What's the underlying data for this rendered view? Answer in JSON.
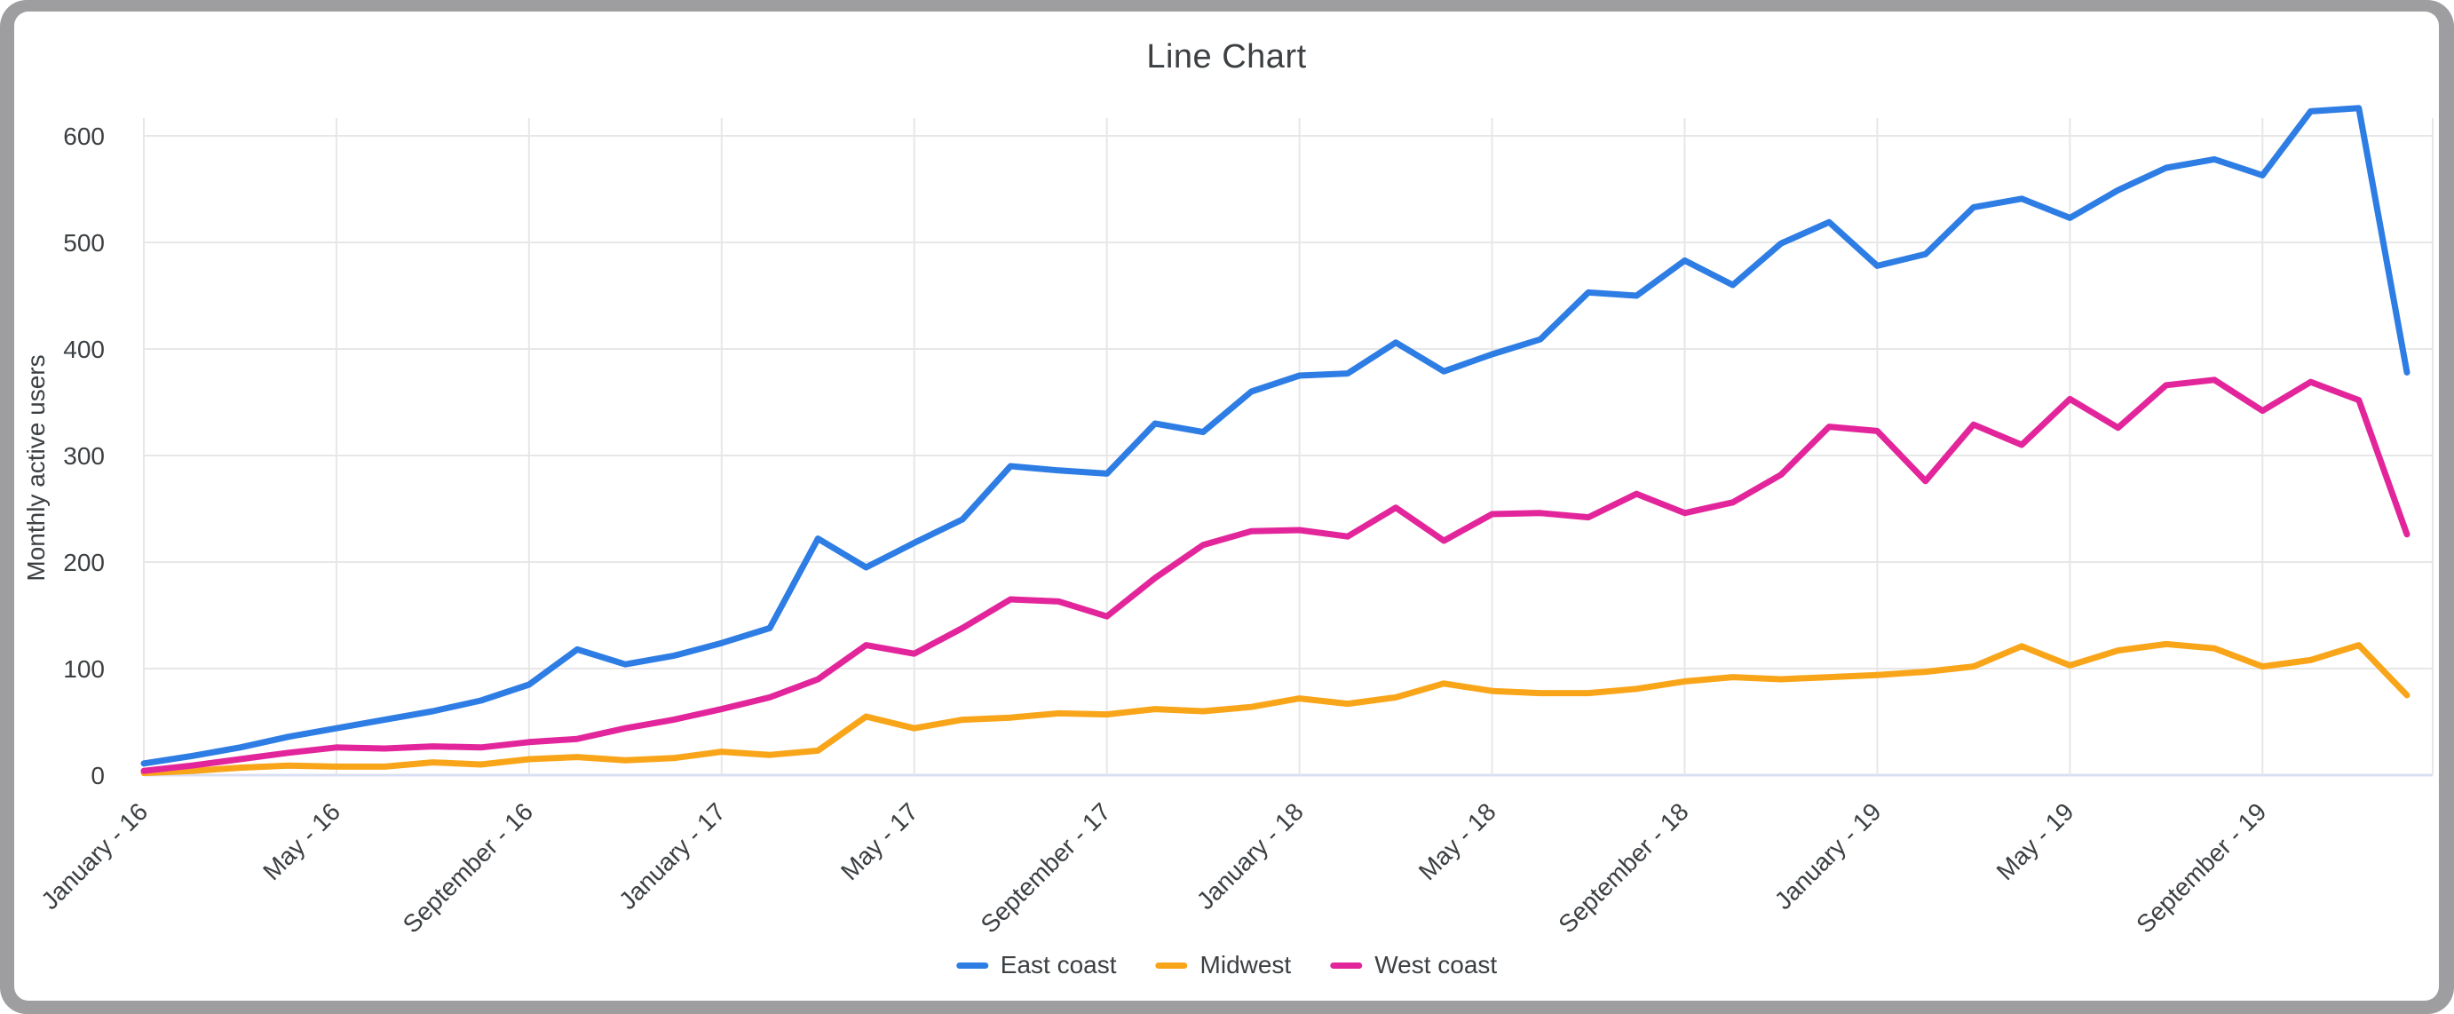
{
  "window": {
    "frame_color": "#9e9ea1",
    "card_color": "#ffffff"
  },
  "chart_data": {
    "type": "line",
    "title": "Line Chart",
    "xlabel": "",
    "ylabel": "Monthly active users",
    "ylim": [
      0,
      650
    ],
    "y_ticks": [
      0,
      100,
      200,
      300,
      400,
      500,
      600
    ],
    "x_tick_labels": [
      "January - 16",
      "May - 16",
      "September - 16",
      "January - 17",
      "May - 17",
      "September - 17",
      "January - 18",
      "May - 18",
      "September - 18",
      "January - 19",
      "May - 19",
      "September - 19"
    ],
    "points_per_labeled_tick": 4,
    "n_points": 48,
    "grid": true,
    "legend_position": "bottom",
    "colors": {
      "gridline": "#e7e7e7",
      "baseline": "#d8dff2",
      "tick_text": "#3c4043"
    },
    "series": [
      {
        "name": "East coast",
        "color": "#2d7de4",
        "values": [
          11,
          18,
          26,
          36,
          44,
          52,
          60,
          70,
          85,
          118,
          104,
          112,
          124,
          138,
          222,
          195,
          218,
          240,
          290,
          286,
          283,
          330,
          322,
          360,
          375,
          377,
          406,
          379,
          395,
          409,
          453,
          450,
          483,
          460,
          499,
          519,
          478,
          489,
          533,
          541,
          523,
          549,
          570,
          578,
          563,
          623,
          626,
          378
        ]
      },
      {
        "name": "Midwest",
        "color": "#f9a51a",
        "values": [
          2,
          4,
          7,
          9,
          8,
          8,
          12,
          10,
          15,
          17,
          14,
          16,
          22,
          19,
          23,
          55,
          44,
          52,
          54,
          58,
          57,
          62,
          60,
          64,
          72,
          67,
          73,
          86,
          79,
          77,
          77,
          81,
          88,
          92,
          90,
          92,
          94,
          97,
          102,
          121,
          103,
          117,
          123,
          119,
          102,
          108,
          122,
          75
        ]
      },
      {
        "name": "West coast",
        "color": "#e3259b",
        "values": [
          4,
          9,
          15,
          21,
          26,
          25,
          27,
          26,
          31,
          34,
          44,
          52,
          62,
          73,
          90,
          122,
          114,
          138,
          165,
          163,
          149,
          185,
          216,
          229,
          230,
          224,
          251,
          220,
          245,
          246,
          242,
          264,
          246,
          256,
          282,
          327,
          323,
          276,
          329,
          310,
          353,
          326,
          366,
          371,
          342,
          369,
          352,
          226
        ]
      }
    ],
    "legend": [
      {
        "label": "East coast",
        "color": "#2d7de4"
      },
      {
        "label": "Midwest",
        "color": "#f9a51a"
      },
      {
        "label": "West coast",
        "color": "#e3259b"
      }
    ]
  }
}
